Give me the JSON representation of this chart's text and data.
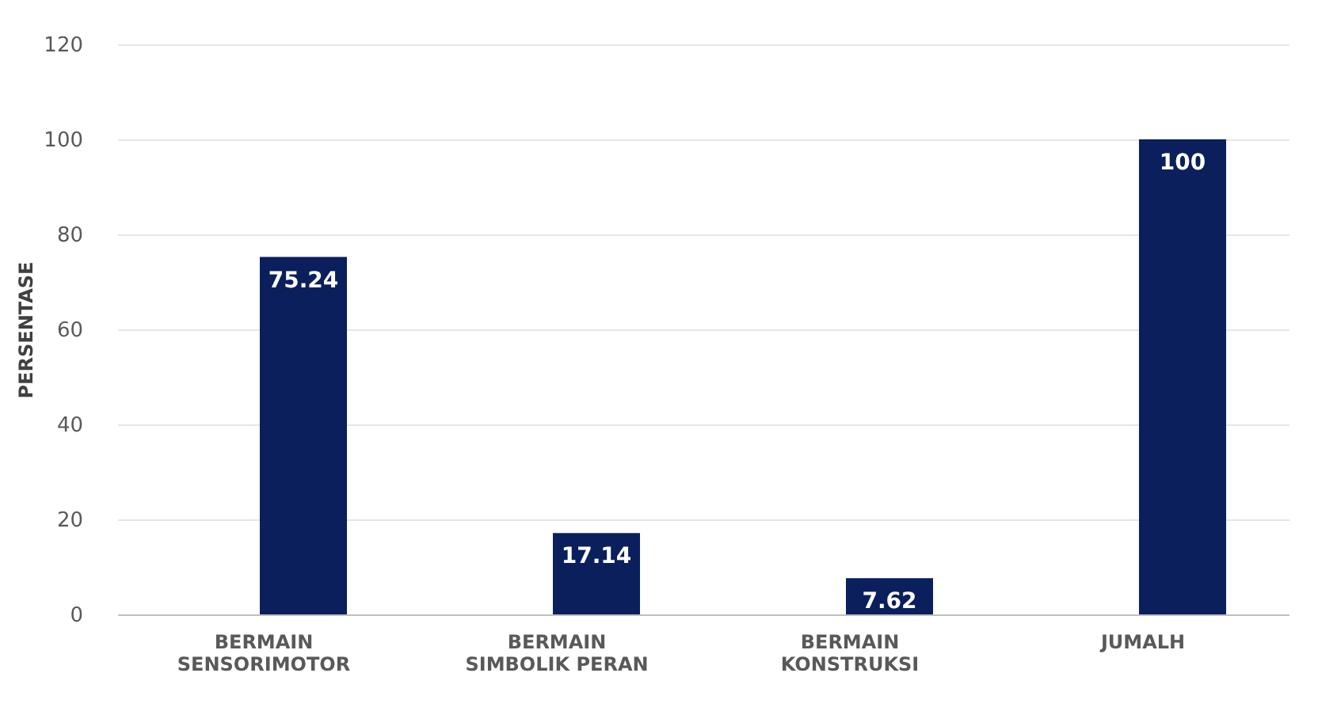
{
  "chart_data": {
    "type": "bar",
    "ylabel": "PERSENTASE",
    "categories": [
      "BERMAIN SENSORIMOTOR",
      "BERMAIN SIMBOLIK PERAN",
      "BERMAIN KONSTRUKSI",
      "JUMALH"
    ],
    "values": [
      75.24,
      17.14,
      7.62,
      100
    ],
    "color": "#0a1f5c",
    "ylim": [
      0,
      120
    ],
    "yticks": [
      0,
      20,
      40,
      60,
      80,
      100,
      120
    ],
    "grid": "y",
    "data_labels": true
  }
}
